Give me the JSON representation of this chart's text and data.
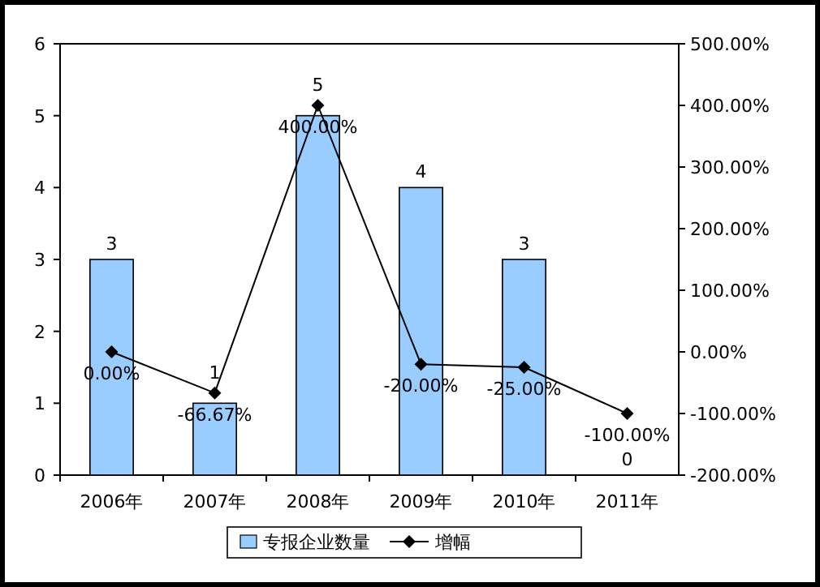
{
  "chart_data": {
    "type": "bar",
    "categories": [
      "2006年",
      "2007年",
      "2008年",
      "2009年",
      "2010年",
      "2011年"
    ],
    "series": [
      {
        "name": "专报企业数量",
        "color": "#99ccff",
        "values": [
          3,
          1,
          5,
          4,
          3,
          0
        ],
        "value_labels": [
          "3",
          "1",
          "5",
          "4",
          "3",
          "0"
        ]
      },
      {
        "name": "增幅",
        "type": "line",
        "axis": "y2",
        "color": "#000000",
        "marker": "diamond",
        "values": [
          0,
          -66.67,
          400,
          -20,
          -25,
          -100
        ],
        "value_labels": [
          "0.00%",
          "-66.67%",
          "400.00%",
          "-20.00%",
          "-25.00%",
          "-100.00%"
        ]
      }
    ],
    "ylim": [
      0,
      6
    ],
    "yticks": [
      0,
      1,
      2,
      3,
      4,
      5,
      6
    ],
    "y2lim": [
      -200,
      500
    ],
    "y2ticks": [
      {
        "value": -200,
        "label": "-200.00%"
      },
      {
        "value": -100,
        "label": "-100.00%"
      },
      {
        "value": 0,
        "label": "0.00%"
      },
      {
        "value": 100,
        "label": "100.00%"
      },
      {
        "value": 200,
        "label": "200.00%"
      },
      {
        "value": 300,
        "label": "300.00%"
      },
      {
        "value": 400,
        "label": "400.00%"
      },
      {
        "value": 500,
        "label": "500.00%"
      }
    ],
    "legend": "bottom"
  }
}
